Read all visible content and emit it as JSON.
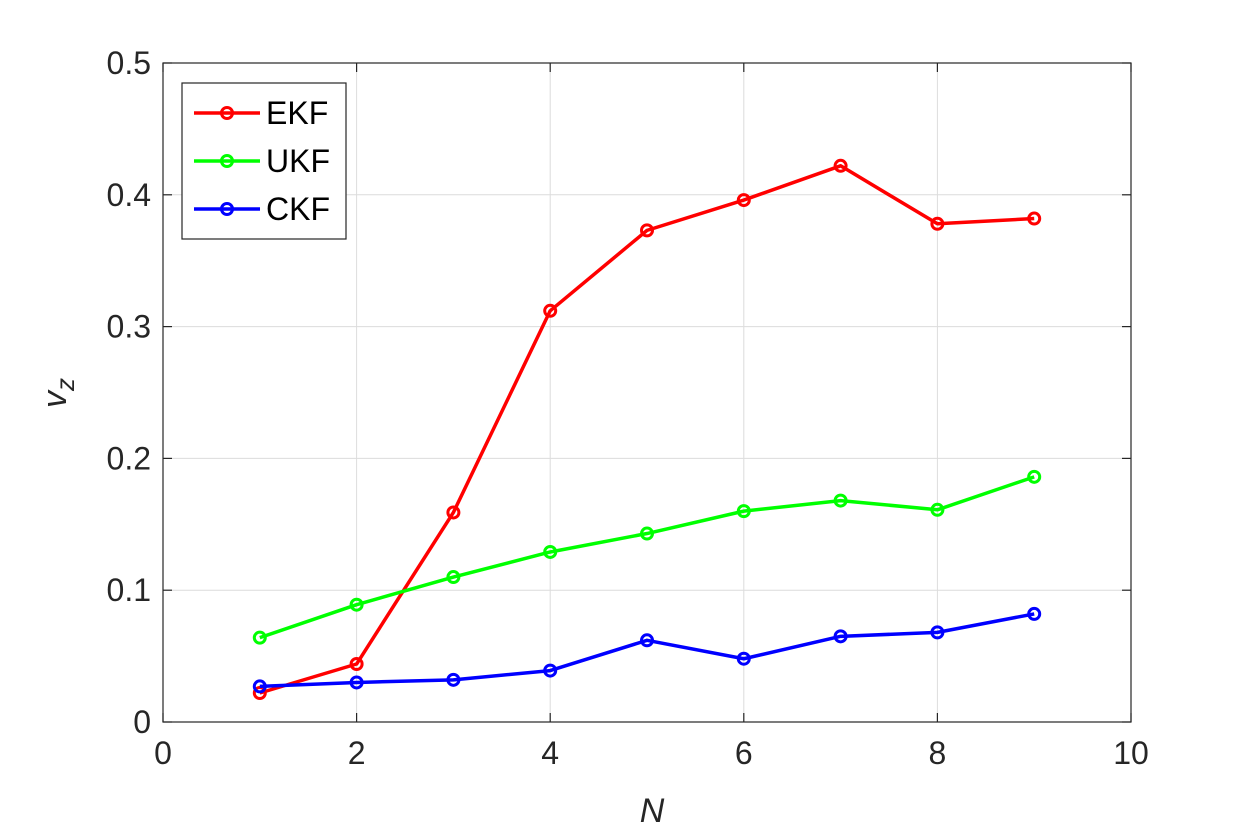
{
  "chart_data": {
    "type": "line",
    "xlabel": "N",
    "ylabel": "v",
    "ylabel_subscript": "z",
    "xlim": [
      0,
      10
    ],
    "ylim": [
      0,
      0.5
    ],
    "xticks": [
      "0",
      "2",
      "4",
      "6",
      "8",
      "10"
    ],
    "yticks": [
      "0",
      "0.1",
      "0.2",
      "0.3",
      "0.4",
      "0.5"
    ],
    "grid": true,
    "legend_position": "top-left",
    "x": [
      1,
      2,
      3,
      4,
      5,
      6,
      7,
      8,
      9
    ],
    "series": [
      {
        "name": "EKF",
        "color": "#ff0000",
        "marker": "circle",
        "values": [
          0.022,
          0.044,
          0.159,
          0.312,
          0.373,
          0.396,
          0.422,
          0.378,
          0.382
        ]
      },
      {
        "name": "UKF",
        "color": "#00ff00",
        "marker": "circle",
        "values": [
          0.064,
          0.089,
          0.11,
          0.129,
          0.143,
          0.16,
          0.168,
          0.161,
          0.186
        ]
      },
      {
        "name": "CKF",
        "color": "#0000ff",
        "marker": "circle",
        "values": [
          0.027,
          0.03,
          0.032,
          0.039,
          0.062,
          0.048,
          0.065,
          0.068,
          0.082
        ]
      }
    ]
  }
}
